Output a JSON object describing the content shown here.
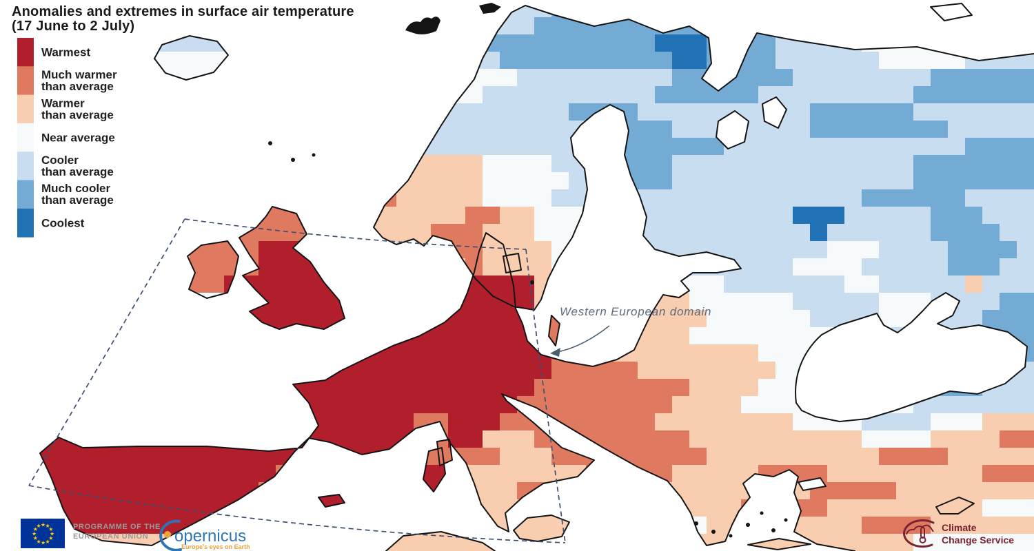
{
  "title": {
    "line1": "Anomalies and extremes in surface air temperature",
    "line2": "(17 June to 2 July)"
  },
  "legend": {
    "items": [
      {
        "key": "1",
        "color": "#b11f2c",
        "label_lines": [
          "Warmest"
        ]
      },
      {
        "key": "2",
        "color": "#df7960",
        "label_lines": [
          "Much warmer",
          "than average"
        ]
      },
      {
        "key": "3",
        "color": "#f9cdb0",
        "label_lines": [
          "Warmer",
          "than average"
        ]
      },
      {
        "key": "4",
        "color": "#f6fafb",
        "label_lines": [
          "Near average"
        ]
      },
      {
        "key": "5",
        "color": "#c8def0",
        "label_lines": [
          "Cooler",
          "than average"
        ]
      },
      {
        "key": "6",
        "color": "#74abd4",
        "label_lines": [
          "Much cooler",
          "than average"
        ]
      },
      {
        "key": "7",
        "color": "#2273b5",
        "label_lines": [
          "Coolest"
        ]
      }
    ]
  },
  "map": {
    "annotation": "Western European domain",
    "sea_color": "#ffffff",
    "coast_color": "#141414",
    "domain_box_color": "#3d4f73",
    "annotation_color": "#5c6b7a",
    "palette": {
      "1": "#b11f2c",
      "2": "#df7960",
      "3": "#f9cdb0",
      "4": "#f6fafb",
      "5": "#c8def0",
      "6": "#74abd4",
      "7": "#2273b5"
    },
    "grid": {
      "cols": 60,
      "rows": 32,
      "cell": 25,
      "rows_data": [
        "555555555555554444444444444555556666666666666555544444444555",
        "555555555555554444444444444555566666666666655555544444445555",
        "555555555555544444444444455566666666667776666555554444445555",
        "555555555444444444444444455556666666666776666555555444445555",
        "555555555444444444444444444444555555555666666655555555666666 6",
        "555555555444444444444444444455555555556666665555555556666666",
        "555555555444444444444555555555555666655555555556666665555555",
        "555555555444444444445555555555555566666555555556666666655555",
        "555555555444444444445555555555555555666666555555555555556666",
        "555555555444444444444433333344445555666555555555555556666666 6",
        "555555555444444444444333333344444555666555555555555556666666 6",
        "555555555444444444332223333344445555555555555555556666665555",
        "555555555444432222244333333223344444555555555577755555666555",
        "555555555444422222244333322233344444455555555557555555666655",
        "555555555332222111224443332233334444555555555555444555566665 5",
        "555555555322222111114443333233334444555555555544445555566655",
        "555555555222211111114421111111133333344444555555544555553555",
        "555555555444441111111111111111133322233344444455555444555566 6",
        "444444444444441111111111111111122333333334444445555444555666",
        "444444444444444111111111111111122333333344444444455555556666",
        "444444444444444111111111111111112223333333334444555555576666",
        "444444444444444111111111111111112222233333333444455555666555",
        "444444444444444111111111111111122222222233334444455556666555",
        "441111111111111111111111111111222222222333344444444445555555",
        "441111111111111111111111221112222222223333333344445555444333",
        "441111111111111111111111221133322222222233333333334444333322",
        "441111111111111111111111222223332222222223333333333222233333",
        "441111111111111122111111113333333322222333332222333333333222",
        "441111111111111221111111113333222222223333333332222233333333",
        "441111111111112211111111113333333333333333322222333333333444",
        "441111111111122333333333333333333333444443333333332222333333 3",
        "333333333333333333333333333333333333333333333333333334444444"
      ]
    }
  },
  "footer": {
    "eu_label_lines": [
      "PROGRAMME OF THE",
      "EUROPEAN UNION"
    ],
    "copernicus": {
      "name": "opernicus",
      "tagline": "Europe's eyes on Earth"
    },
    "c3s_lines": [
      "Climate",
      "Change Service"
    ]
  }
}
